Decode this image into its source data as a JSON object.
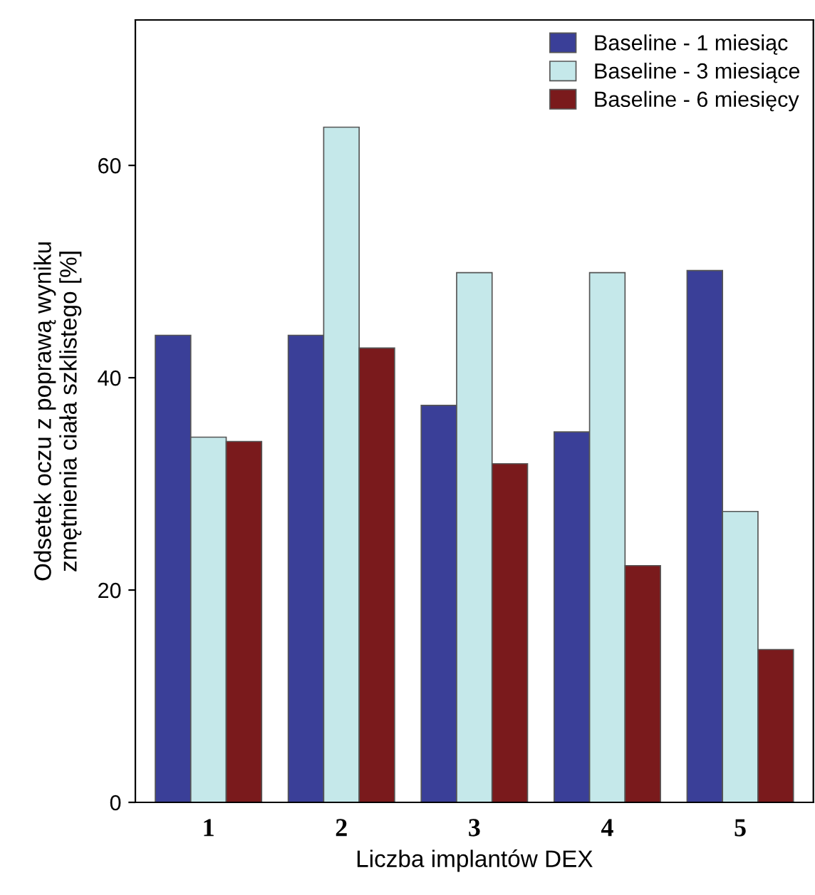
{
  "chart_data": {
    "type": "bar",
    "xlabel": "Liczba implantów DEX",
    "ylabel": "Odsetek oczu z poprawą wyniku\nzmętnienia ciała szklistego [%]",
    "categories": [
      "1",
      "2",
      "3",
      "4",
      "5"
    ],
    "series": [
      {
        "name": "Baseline - 1 miesiąc",
        "color": "#3a3f98",
        "values": [
          44.0,
          44.0,
          37.4,
          34.9,
          50.1
        ]
      },
      {
        "name": "Baseline - 3 miesiące",
        "color": "#c5e8ea",
        "values": [
          34.4,
          63.6,
          49.9,
          49.9,
          27.4
        ]
      },
      {
        "name": "Baseline - 6 miesięcy",
        "color": "#7a1a1c",
        "values": [
          34.0,
          42.8,
          31.9,
          22.3,
          14.4
        ]
      }
    ],
    "ylim": [
      0,
      73.7
    ],
    "yticks": [
      0,
      20,
      40,
      60
    ],
    "grid": false,
    "legend": "top right"
  }
}
